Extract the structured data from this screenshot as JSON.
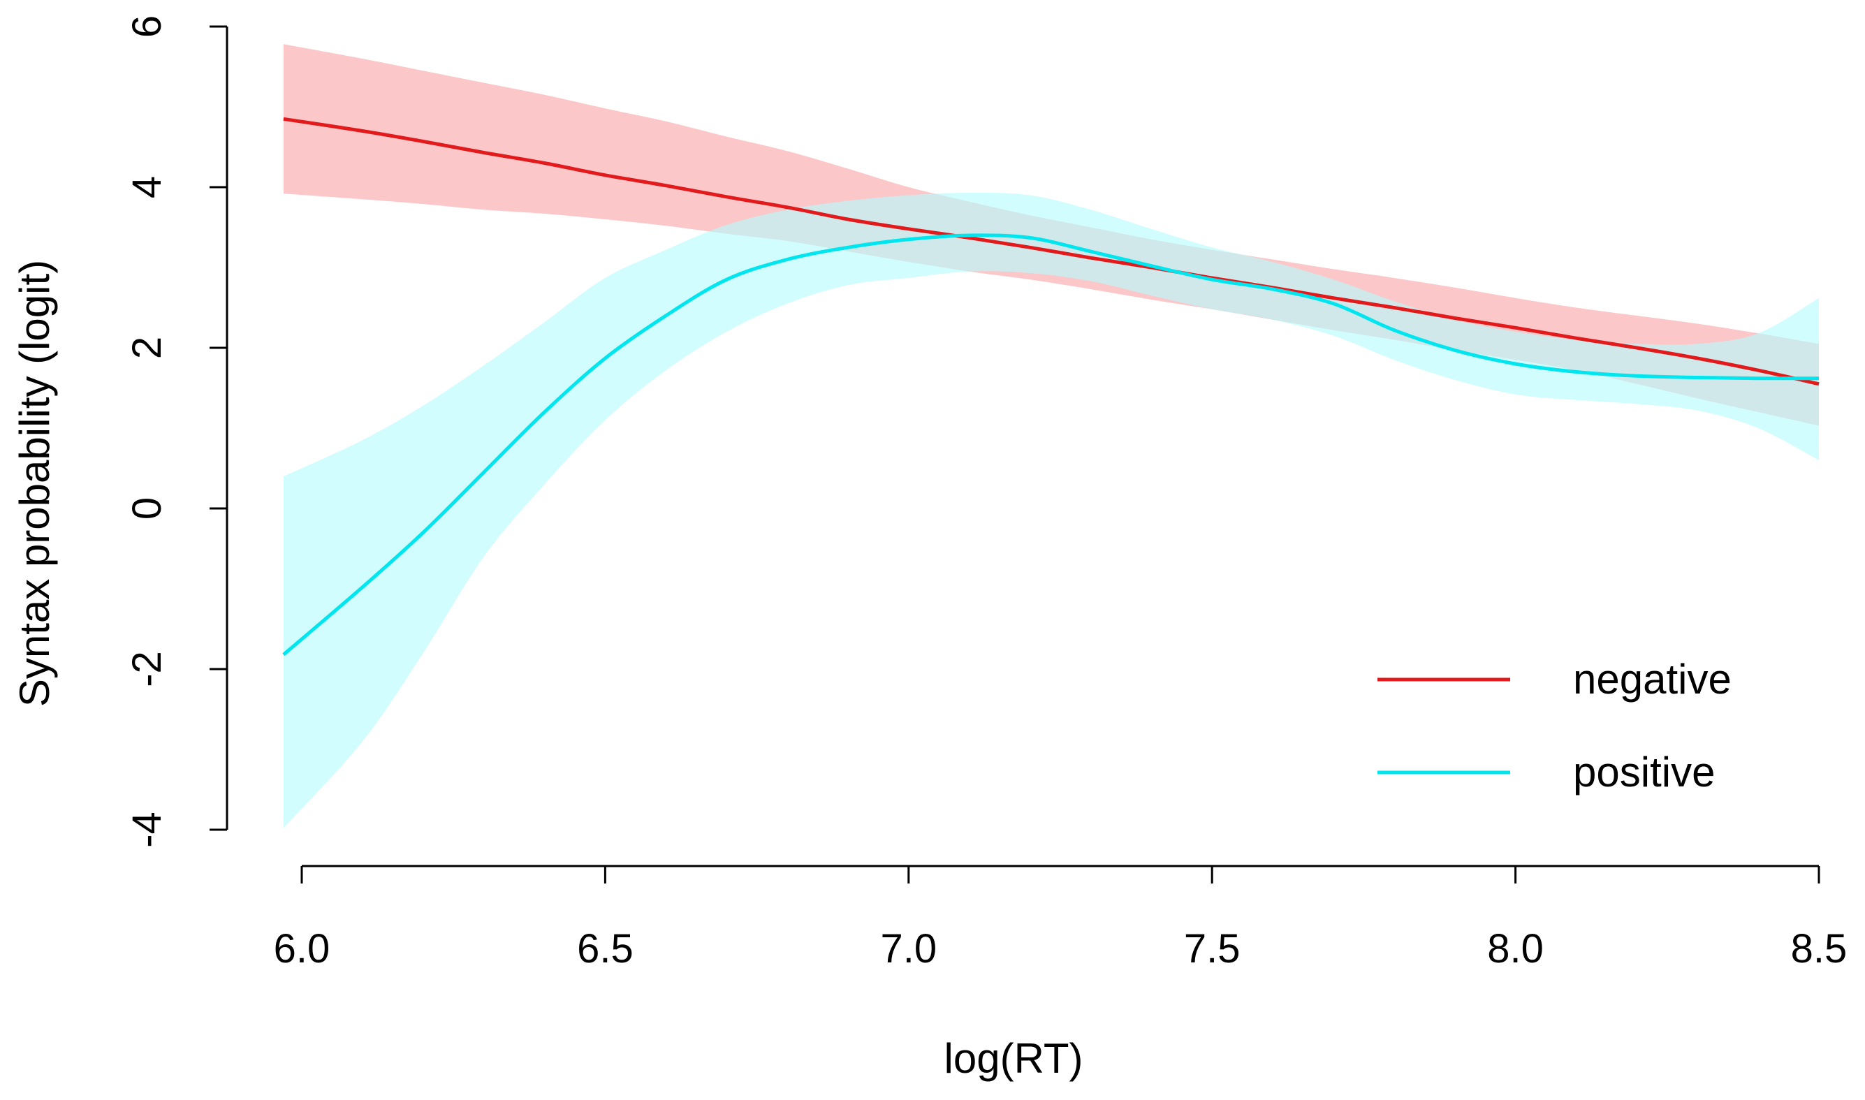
{
  "chart_data": {
    "type": "line",
    "title": "",
    "xlabel": "log(RT)",
    "ylabel": "Syntax probability (logit)",
    "xlim": [
      5.96,
      8.5
    ],
    "ylim": [
      -4,
      6
    ],
    "xticks": [
      "6.0",
      "6.5",
      "7.0",
      "7.5",
      "8.0",
      "8.5"
    ],
    "yticks": [
      "-4",
      "-2",
      "0",
      "2",
      "4",
      "6"
    ],
    "legend_position": "bottom-right",
    "series": [
      {
        "name": "negative",
        "color": "#e31a1c",
        "band_color": "#f8a5a6",
        "x": [
          5.97,
          6.1,
          6.2,
          6.3,
          6.4,
          6.5,
          6.6,
          6.7,
          6.8,
          6.9,
          7.0,
          7.1,
          7.2,
          7.3,
          7.4,
          7.5,
          7.6,
          7.7,
          7.8,
          7.9,
          8.0,
          8.1,
          8.2,
          8.3,
          8.4,
          8.5
        ],
        "y": [
          4.85,
          4.7,
          4.57,
          4.43,
          4.3,
          4.15,
          4.02,
          3.88,
          3.75,
          3.6,
          3.48,
          3.37,
          3.25,
          3.12,
          3.0,
          2.87,
          2.75,
          2.62,
          2.5,
          2.37,
          2.25,
          2.12,
          2.0,
          1.87,
          1.72,
          1.55
        ],
        "lower": [
          3.92,
          3.85,
          3.79,
          3.72,
          3.67,
          3.6,
          3.52,
          3.42,
          3.33,
          3.2,
          3.07,
          2.95,
          2.85,
          2.73,
          2.6,
          2.48,
          2.35,
          2.22,
          2.1,
          1.97,
          1.85,
          1.72,
          1.55,
          1.37,
          1.2,
          1.03
        ],
        "upper": [
          5.78,
          5.6,
          5.45,
          5.3,
          5.15,
          4.98,
          4.82,
          4.63,
          4.45,
          4.23,
          4.0,
          3.82,
          3.65,
          3.5,
          3.35,
          3.22,
          3.1,
          2.98,
          2.87,
          2.75,
          2.62,
          2.5,
          2.4,
          2.3,
          2.18,
          2.05
        ]
      },
      {
        "name": "positive",
        "color": "#00e5ee",
        "band_color": "#b5fbfd",
        "x": [
          5.97,
          6.1,
          6.2,
          6.3,
          6.4,
          6.5,
          6.6,
          6.7,
          6.8,
          6.9,
          7.0,
          7.1,
          7.2,
          7.3,
          7.4,
          7.5,
          7.6,
          7.7,
          7.8,
          7.9,
          8.0,
          8.1,
          8.2,
          8.3,
          8.4,
          8.5
        ],
        "y": [
          -1.82,
          -0.98,
          -0.3,
          0.45,
          1.2,
          1.87,
          2.4,
          2.85,
          3.1,
          3.25,
          3.35,
          3.4,
          3.37,
          3.2,
          3.02,
          2.85,
          2.73,
          2.55,
          2.22,
          1.97,
          1.8,
          1.7,
          1.65,
          1.63,
          1.62,
          1.62
        ],
        "lower": [
          -3.98,
          -2.9,
          -1.8,
          -0.6,
          0.3,
          1.1,
          1.72,
          2.2,
          2.55,
          2.78,
          2.87,
          2.95,
          2.93,
          2.83,
          2.65,
          2.48,
          2.35,
          2.15,
          1.85,
          1.6,
          1.42,
          1.35,
          1.3,
          1.22,
          1.0,
          0.6
        ],
        "upper": [
          0.4,
          0.85,
          1.28,
          1.78,
          2.32,
          2.87,
          3.22,
          3.53,
          3.72,
          3.83,
          3.9,
          3.93,
          3.9,
          3.72,
          3.48,
          3.25,
          3.07,
          2.85,
          2.58,
          2.35,
          2.2,
          2.1,
          2.05,
          2.05,
          2.18,
          2.62
        ]
      }
    ]
  }
}
